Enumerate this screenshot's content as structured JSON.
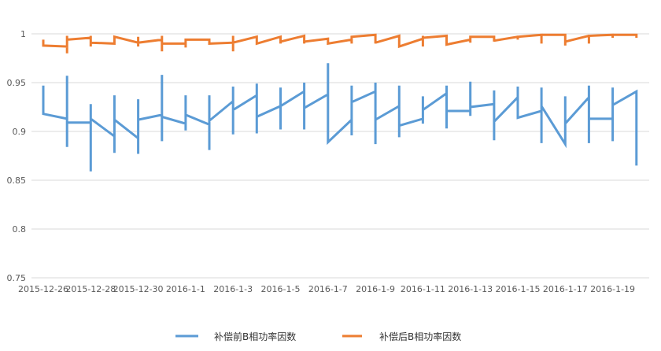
{
  "chart_data": {
    "type": "line",
    "title": "",
    "xlabel": "",
    "ylabel": "",
    "ylim": [
      0.75,
      1
    ],
    "yticks": [
      "0.75",
      "0.8",
      "0.85",
      "0.9",
      "0.95",
      "1"
    ],
    "grid": true,
    "legend_position": "bottom",
    "x": [
      "2015-12-26",
      "2015-12-27",
      "2015-12-28",
      "2015-12-29",
      "2015-12-30",
      "2015-12-31",
      "2016-1-1",
      "2016-1-2",
      "2016-1-3",
      "2016-1-4",
      "2016-1-5",
      "2016-1-6",
      "2016-1-7",
      "2016-1-8",
      "2016-1-9",
      "2016-1-10",
      "2016-1-11",
      "2016-1-12",
      "2016-1-13",
      "2016-1-14",
      "2016-1-15",
      "2016-1-16",
      "2016-1-17",
      "2016-1-18",
      "2016-1-19",
      "2016-1-20"
    ],
    "xtick_labels": [
      "2015-12-26",
      "2015-12-28",
      "2015-12-30",
      "2016-1-1",
      "2016-1-3",
      "2016-1-5",
      "2016-1-7",
      "2016-1-9",
      "2016-1-11",
      "2016-1-13",
      "2016-1-15",
      "2016-1-17",
      "2016-1-19"
    ],
    "series": [
      {
        "name": "补偿前B相功率因数",
        "color": "#5B9BD5",
        "daily_values": [
          [
            0.947,
            0.947,
            0.918,
            0.918
          ],
          [
            0.913,
            0.957,
            0.884,
            0.909
          ],
          [
            0.909,
            0.928,
            0.859,
            0.913
          ],
          [
            0.895,
            0.937,
            0.878,
            0.912
          ],
          [
            0.893,
            0.933,
            0.877,
            0.912
          ],
          [
            0.917,
            0.958,
            0.89,
            0.915
          ],
          [
            0.908,
            0.937,
            0.901,
            0.917
          ],
          [
            0.907,
            0.937,
            0.881,
            0.911
          ],
          [
            0.931,
            0.946,
            0.897,
            0.922
          ],
          [
            0.937,
            0.949,
            0.898,
            0.915
          ],
          [
            0.926,
            0.945,
            0.902,
            0.926
          ],
          [
            0.941,
            0.95,
            0.902,
            0.924
          ],
          [
            0.938,
            0.97,
            0.889,
            0.889
          ],
          [
            0.912,
            0.947,
            0.896,
            0.93
          ],
          [
            0.941,
            0.95,
            0.887,
            0.912
          ],
          [
            0.926,
            0.947,
            0.894,
            0.906
          ],
          [
            0.913,
            0.936,
            0.908,
            0.922
          ],
          [
            0.939,
            0.947,
            0.903,
            0.921
          ],
          [
            0.921,
            0.951,
            0.916,
            0.925
          ],
          [
            0.928,
            0.942,
            0.891,
            0.91
          ],
          [
            0.935,
            0.946,
            0.914,
            0.914
          ],
          [
            0.921,
            0.945,
            0.888,
            0.926
          ],
          [
            0.887,
            0.936,
            0.887,
            0.908
          ],
          [
            0.935,
            0.947,
            0.888,
            0.913
          ],
          [
            0.913,
            0.945,
            0.89,
            0.927
          ],
          [
            0.941,
            0.941,
            0.865,
            0.865
          ]
        ]
      },
      {
        "name": "补偿后B相功率因数",
        "color": "#ED7D31",
        "daily_values": [
          [
            0.994,
            0.994,
            0.988,
            0.988
          ],
          [
            0.987,
            0.998,
            0.98,
            0.994
          ],
          [
            0.996,
            0.998,
            0.987,
            0.991
          ],
          [
            0.99,
            0.997,
            0.99,
            0.997
          ],
          [
            0.991,
            0.997,
            0.987,
            0.991
          ],
          [
            0.994,
            0.998,
            0.982,
            0.99
          ],
          [
            0.99,
            0.994,
            0.986,
            0.994
          ],
          [
            0.994,
            0.994,
            0.99,
            0.99
          ],
          [
            0.991,
            0.998,
            0.982,
            0.991
          ],
          [
            0.997,
            0.997,
            0.99,
            0.99
          ],
          [
            0.997,
            0.997,
            0.99,
            0.992
          ],
          [
            0.998,
            0.998,
            0.99,
            0.992
          ],
          [
            0.995,
            0.995,
            0.99,
            0.99
          ],
          [
            0.994,
            0.998,
            0.99,
            0.997
          ],
          [
            0.999,
            0.999,
            0.99,
            0.991
          ],
          [
            0.998,
            0.998,
            0.987,
            0.987
          ],
          [
            0.995,
            0.998,
            0.987,
            0.996
          ],
          [
            0.998,
            0.998,
            0.989,
            0.989
          ],
          [
            0.994,
            0.997,
            0.991,
            0.997
          ],
          [
            0.997,
            0.997,
            0.992,
            0.993
          ],
          [
            0.997,
            0.998,
            0.994,
            0.997
          ],
          [
            0.999,
            0.999,
            0.99,
            0.999
          ],
          [
            0.999,
            0.999,
            0.988,
            0.992
          ],
          [
            0.998,
            0.999,
            0.99,
            0.998
          ],
          [
            0.999,
            0.999,
            0.996,
            0.999
          ],
          [
            0.999,
            0.999,
            0.996,
            0.996
          ]
        ]
      }
    ]
  }
}
